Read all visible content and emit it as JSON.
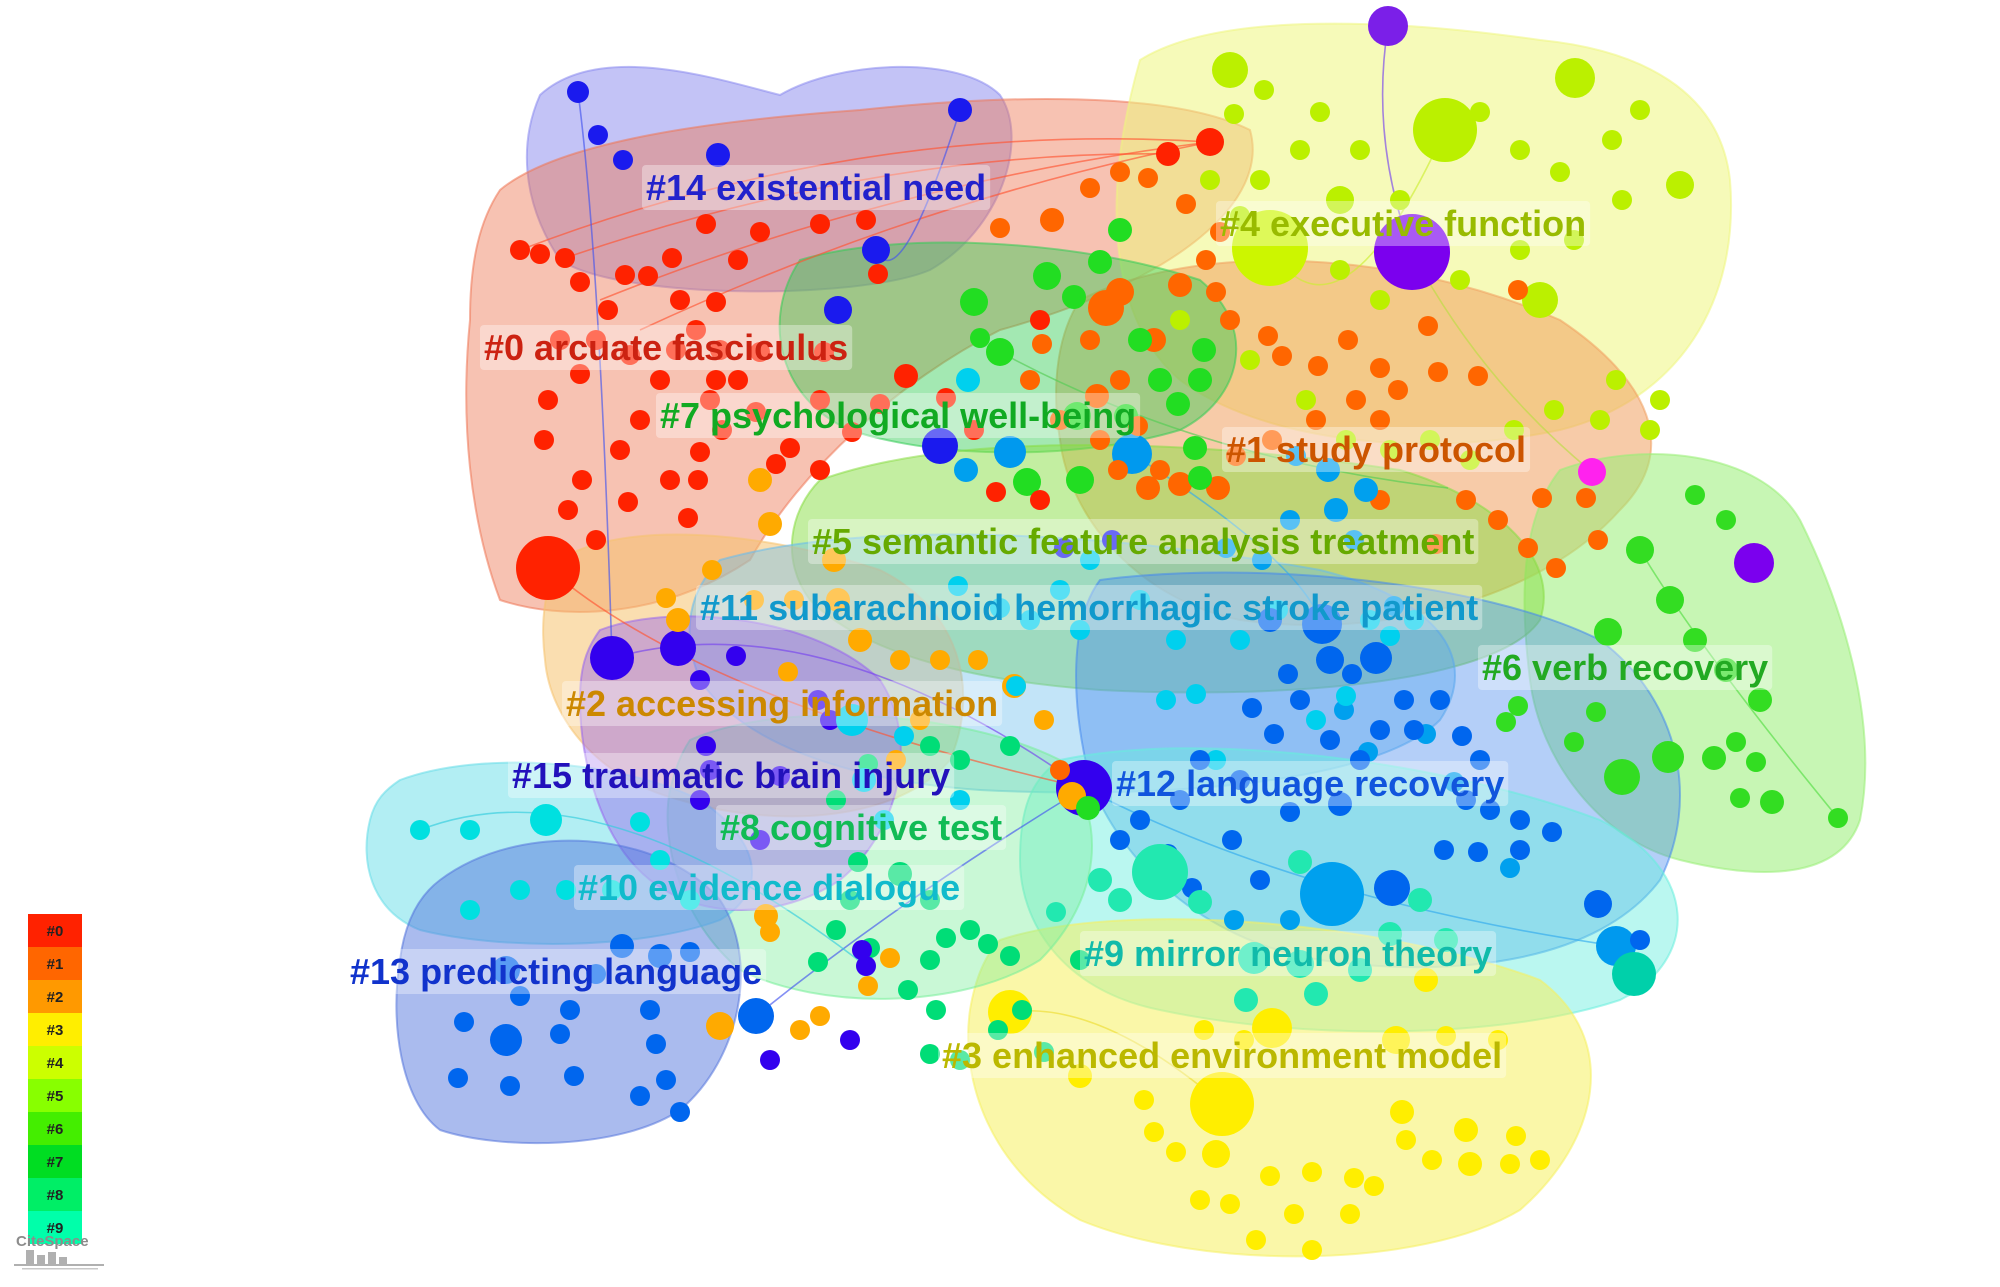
{
  "clusters": [
    {
      "label": "#0 arcuate fasciculus",
      "color": "#ff3300"
    },
    {
      "label": "#1 study protocol",
      "color": "#ff7700"
    },
    {
      "label": "#2 accessing information",
      "color": "#ffaa00"
    },
    {
      "label": "#3 enhanced environment model",
      "color": "#ffee00"
    },
    {
      "label": "#4 executive function",
      "color": "#bbf000"
    },
    {
      "label": "#5 semantic feature analysis treatment",
      "color": "#77e000"
    },
    {
      "label": "#6 verb recovery",
      "color": "#33dd22"
    },
    {
      "label": "#7 psychological well-being",
      "color": "#00d02a"
    },
    {
      "label": "#8 cognitive test",
      "color": "#00dd77"
    },
    {
      "label": "#9 mirror neuron theory",
      "color": "#22e8b0"
    },
    {
      "label": "#10 evidence dialogue",
      "color": "#00e0e0"
    },
    {
      "label": "#11 subarachnoid hemorrhagic stroke patient",
      "color": "#00aaee"
    },
    {
      "label": "#12 language recovery",
      "color": "#0066ee"
    },
    {
      "label": "#13 predicting language",
      "color": "#2244dd"
    },
    {
      "label": "#14 existential need",
      "color": "#2222ee"
    },
    {
      "label": "#15 traumatic brain injury",
      "color": "#5500ee"
    }
  ],
  "legend": {
    "entries": [
      "#0",
      "#1",
      "#2",
      "#3",
      "#4",
      "#5",
      "#6",
      "#7",
      "#8",
      "#9"
    ],
    "colors": [
      "#ff2200",
      "#ff6600",
      "#ff9900",
      "#ffee00",
      "#ccff00",
      "#88ff00",
      "#44ee00",
      "#00dd22",
      "#00ee66",
      "#00ffaa"
    ]
  },
  "branding": {
    "text": "CiteSpace"
  }
}
